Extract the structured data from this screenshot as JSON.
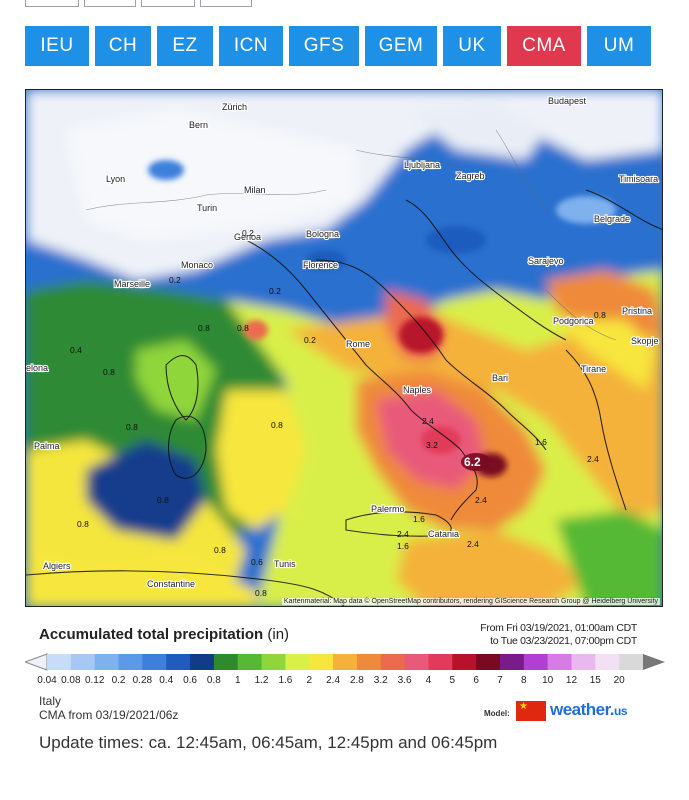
{
  "models": [
    {
      "label": "IEU",
      "active": false
    },
    {
      "label": "CH",
      "active": false
    },
    {
      "label": "EZ",
      "active": false
    },
    {
      "label": "ICN",
      "active": false
    },
    {
      "label": "GFS",
      "active": false
    },
    {
      "label": "GEM",
      "active": false
    },
    {
      "label": "UK",
      "active": false
    },
    {
      "label": "CMA",
      "active": true
    },
    {
      "label": "UM",
      "active": false
    }
  ],
  "map": {
    "cities": [
      {
        "name": "Zürich"
      },
      {
        "name": "Bern"
      },
      {
        "name": "Budapest"
      },
      {
        "name": "Ljubljana"
      },
      {
        "name": "Zagreb"
      },
      {
        "name": "Lyon"
      },
      {
        "name": "Milan"
      },
      {
        "name": "Turin"
      },
      {
        "name": "Timisoara"
      },
      {
        "name": "Genoa"
      },
      {
        "name": "Bologna"
      },
      {
        "name": "Belgrade"
      },
      {
        "name": "Sarajevo"
      },
      {
        "name": "Monaco"
      },
      {
        "name": "Marseille"
      },
      {
        "name": "Florence"
      },
      {
        "name": "Podgorica"
      },
      {
        "name": "Pristina"
      },
      {
        "name": "Skopje"
      },
      {
        "name": "Rome"
      },
      {
        "name": "Bari"
      },
      {
        "name": "Tirane"
      },
      {
        "name": "Naples"
      },
      {
        "name": "Palma"
      },
      {
        "name": "Palermo"
      },
      {
        "name": "Catania"
      },
      {
        "name": "Tunis"
      },
      {
        "name": "Algiers"
      },
      {
        "name": "Constantine"
      },
      {
        "name": "elona"
      }
    ],
    "values": [
      "0.2",
      "0.2",
      "0.2",
      "0.2",
      "0.8",
      "0.8",
      "0.8",
      "0.8",
      "0.8",
      "0.8",
      "0.8",
      "0.8",
      "2.4",
      "3.2",
      "2.4",
      "2.4",
      "1.6",
      "2.4",
      "1.6",
      "1.6",
      "2.4",
      "0.8",
      "0.6",
      "0.4",
      "0.8"
    ],
    "peak_value": "6.2",
    "credit": "Kartenmaterial: Map data © OpenStreetMap contributors, rendering GIScience Research Group @ Heidelberg University"
  },
  "legend": {
    "title": "Accumulated total precipitation",
    "unit": "(in)",
    "range_from": "From Fri 03/19/2021, 01:00am CDT",
    "range_to": "to Tue 03/23/2021, 07:00pm CDT",
    "stops": [
      {
        "label": "0.04",
        "color": "#c7dcf7"
      },
      {
        "label": "0.08",
        "color": "#a6c8f3"
      },
      {
        "label": "0.12",
        "color": "#7fb1ee"
      },
      {
        "label": "0.2",
        "color": "#5a9ae8"
      },
      {
        "label": "0.28",
        "color": "#3c80dc"
      },
      {
        "label": "0.4",
        "color": "#1e5cbe"
      },
      {
        "label": "0.6",
        "color": "#123c8a"
      },
      {
        "label": "0.8",
        "color": "#2d8a2d"
      },
      {
        "label": "1",
        "color": "#55b934"
      },
      {
        "label": "1.2",
        "color": "#8fd63a"
      },
      {
        "label": "1.6",
        "color": "#d9ef4a"
      },
      {
        "label": "2",
        "color": "#f7e63e"
      },
      {
        "label": "2.4",
        "color": "#f4b23a"
      },
      {
        "label": "2.8",
        "color": "#ef8a3a"
      },
      {
        "label": "3.2",
        "color": "#ec6a4f"
      },
      {
        "label": "3.6",
        "color": "#e95a7a"
      },
      {
        "label": "4",
        "color": "#e23a5a"
      },
      {
        "label": "5",
        "color": "#b8122a"
      },
      {
        "label": "6",
        "color": "#7a0a22"
      },
      {
        "label": "7",
        "color": "#7a1b8a"
      },
      {
        "label": "8",
        "color": "#b23fd4"
      },
      {
        "label": "10",
        "color": "#d77ce6"
      },
      {
        "label": "12",
        "color": "#e9b8ef"
      },
      {
        "label": "15",
        "color": "#f3e0f5"
      },
      {
        "label": "20",
        "color": "#d9d9d9"
      }
    ]
  },
  "footer": {
    "region": "Italy",
    "run": "CMA from 03/19/2021/06z",
    "model_label": "Model:",
    "brand": "weather.",
    "brand_tld": "us",
    "update_times": "Update times: ca. 12:45am, 06:45am, 12:45pm and 06:45pm"
  },
  "colors": {
    "accent": "#1e90e6",
    "active": "#e0384f"
  }
}
